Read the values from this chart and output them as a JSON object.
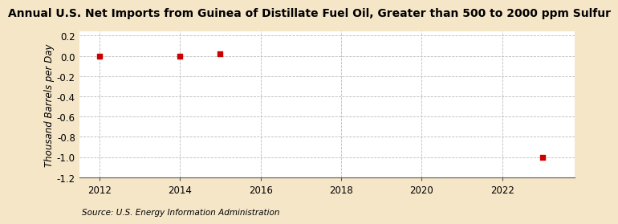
{
  "title": "Annual U.S. Net Imports from Guinea of Distillate Fuel Oil, Greater than 500 to 2000 ppm Sulfur",
  "ylabel": "Thousand Barrels per Day",
  "source": "Source: U.S. Energy Information Administration",
  "background_color": "#f5e6c8",
  "plot_background_color": "#ffffff",
  "data_points": [
    {
      "year": 2012,
      "value": 0.0
    },
    {
      "year": 2014,
      "value": 0.0
    },
    {
      "year": 2015,
      "value": 0.02
    },
    {
      "year": 2023,
      "value": -1.0
    }
  ],
  "marker_color": "#cc0000",
  "marker_size": 4,
  "xlim": [
    2011.5,
    2023.8
  ],
  "ylim": [
    -1.2,
    0.24
  ],
  "yticks": [
    0.2,
    0.0,
    -0.2,
    -0.4,
    -0.6,
    -0.8,
    -1.0,
    -1.2
  ],
  "xticks": [
    2012,
    2014,
    2016,
    2018,
    2020,
    2022
  ],
  "grid_color": "#bbbbbb",
  "title_fontsize": 10,
  "label_fontsize": 8.5,
  "tick_fontsize": 8.5,
  "source_fontsize": 7.5
}
